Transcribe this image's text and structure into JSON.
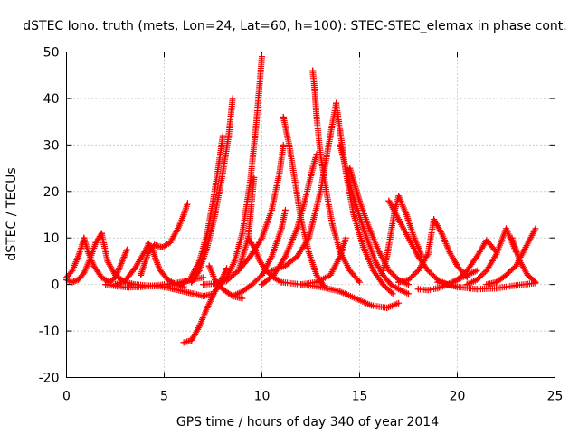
{
  "chart_data": {
    "type": "scatter",
    "title": "dSTEC Iono. truth (mets, Lon=24, Lat=60, h=100): STEC-STEC_elemax in phase cont.",
    "xlabel": "GPS time / hours of day 340 of year 2014",
    "ylabel": "dSTEC  / TECUs",
    "xlim": [
      0,
      25
    ],
    "ylim": [
      -20,
      50
    ],
    "xticks": [
      0,
      5,
      10,
      15,
      20,
      25
    ],
    "yticks": [
      -20,
      -10,
      0,
      10,
      20,
      30,
      40,
      50
    ],
    "grid": true,
    "marker": "plus",
    "color": "#ff0000",
    "series": [
      {
        "x": [
          0.0,
          0.3,
          0.6,
          0.8,
          0.9
        ],
        "y": [
          1.5,
          3.0,
          6.0,
          8.5,
          10.0
        ]
      },
      {
        "x": [
          0.9,
          1.1,
          1.4,
          1.8,
          2.2,
          2.5,
          2.7,
          2.9,
          3.1
        ],
        "y": [
          10.0,
          7.0,
          4.0,
          1.5,
          0.5,
          1.5,
          3.5,
          5.5,
          7.5
        ]
      },
      {
        "x": [
          0.0,
          0.3,
          0.6,
          0.9,
          1.2,
          1.5,
          1.8
        ],
        "y": [
          1.0,
          0.5,
          1.0,
          2.5,
          5.5,
          9.0,
          11.0
        ]
      },
      {
        "x": [
          1.8,
          2.1,
          2.5,
          3.0,
          3.5,
          4.0,
          4.5,
          5.0
        ],
        "y": [
          11.0,
          5.0,
          2.0,
          0.5,
          0.0,
          -0.2,
          -0.3,
          -0.5
        ]
      },
      {
        "x": [
          2.0,
          2.6,
          3.2,
          3.8,
          4.4,
          5.0,
          5.6,
          6.2,
          7.0
        ],
        "y": [
          0.0,
          -0.4,
          -0.6,
          -0.5,
          -0.3,
          0.0,
          0.3,
          0.8,
          1.5
        ]
      },
      {
        "x": [
          2.5,
          3.0,
          3.5,
          4.0,
          4.2
        ],
        "y": [
          0.0,
          0.8,
          3.5,
          7.0,
          8.8
        ]
      },
      {
        "x": [
          4.2,
          4.4,
          4.6,
          4.8,
          5.2,
          5.6,
          6.0
        ],
        "y": [
          8.8,
          7.5,
          5.0,
          3.0,
          1.0,
          0.0,
          -0.5
        ]
      },
      {
        "x": [
          3.8,
          4.0,
          4.2,
          4.5,
          4.9,
          5.3,
          5.7,
          6.0,
          6.2
        ],
        "y": [
          2.0,
          4.5,
          7.0,
          8.5,
          8.0,
          9.0,
          12.0,
          15.0,
          17.5
        ]
      },
      {
        "x": [
          5.0,
          5.5,
          6.0,
          6.5,
          7.0,
          7.5
        ],
        "y": [
          -0.5,
          -1.0,
          -1.5,
          -2.0,
          -2.5,
          -2.0
        ]
      },
      {
        "x": [
          6.0,
          6.4,
          6.8,
          7.2,
          7.6,
          8.0,
          8.2
        ],
        "y": [
          -12.5,
          -12.0,
          -9.0,
          -5.0,
          -1.5,
          1.5,
          3.5
        ]
      },
      {
        "x": [
          5.8,
          6.3,
          6.8,
          7.2,
          7.5,
          7.8,
          8.0
        ],
        "y": [
          0.0,
          1.0,
          5.0,
          11.0,
          18.0,
          26.0,
          32.0
        ]
      },
      {
        "x": [
          6.4,
          6.8,
          7.2,
          7.6,
          8.0,
          8.3,
          8.5
        ],
        "y": [
          0.5,
          3.0,
          8.0,
          15.0,
          24.0,
          32.0,
          40.0
        ]
      },
      {
        "x": [
          7.3,
          7.6,
          8.0,
          8.5,
          9.0
        ],
        "y": [
          4.0,
          1.0,
          -1.0,
          -2.5,
          -3.0
        ]
      },
      {
        "x": [
          7.8,
          8.2,
          8.6,
          9.0,
          9.4,
          9.7,
          10.0
        ],
        "y": [
          -0.5,
          1.5,
          5.0,
          11.0,
          22.0,
          34.0,
          49.0
        ]
      },
      {
        "x": [
          7.0,
          7.6,
          8.2,
          8.8,
          9.3,
          9.6
        ],
        "y": [
          0.0,
          0.2,
          0.8,
          3.0,
          10.0,
          23.0
        ]
      },
      {
        "x": [
          8.5,
          9.0,
          9.5,
          10.0,
          10.5,
          11.0,
          11.2
        ],
        "y": [
          -2.5,
          -1.5,
          0.0,
          2.0,
          6.0,
          12.0,
          16.0
        ]
      },
      {
        "x": [
          9.3,
          9.6,
          9.9,
          10.2,
          10.6,
          11.0
        ],
        "y": [
          10.0,
          8.0,
          5.0,
          3.0,
          1.5,
          0.5
        ]
      },
      {
        "x": [
          8.8,
          9.4,
          10.0,
          10.5,
          10.9,
          11.1
        ],
        "y": [
          3.0,
          6.0,
          10.0,
          16.0,
          24.0,
          30.0
        ]
      },
      {
        "x": [
          11.1,
          11.4,
          11.7,
          12.0,
          12.4,
          12.8,
          13.2
        ],
        "y": [
          36.0,
          30.0,
          22.0,
          14.0,
          7.0,
          2.0,
          -0.5
        ]
      },
      {
        "x": [
          10.0,
          10.6,
          11.2,
          11.8,
          12.2,
          12.6,
          12.8
        ],
        "y": [
          0.0,
          2.0,
          6.0,
          12.0,
          18.0,
          25.0,
          28.0
        ]
      },
      {
        "x": [
          12.6,
          12.7,
          12.8,
          13.0,
          13.3,
          13.6,
          14.0,
          14.5,
          15.0
        ],
        "y": [
          46.0,
          42.0,
          36.0,
          28.0,
          20.0,
          13.0,
          7.0,
          3.0,
          0.5
        ]
      },
      {
        "x": [
          10.5,
          11.2,
          11.8,
          12.4,
          13.0,
          13.5,
          13.8
        ],
        "y": [
          3.0,
          4.0,
          6.0,
          10.0,
          20.0,
          32.0,
          39.0
        ]
      },
      {
        "x": [
          13.8,
          14.0,
          14.3,
          14.7,
          15.2,
          15.7,
          16.2,
          16.7
        ],
        "y": [
          39.0,
          33.0,
          24.0,
          15.0,
          8.0,
          3.0,
          0.0,
          -2.0
        ]
      },
      {
        "x": [
          14.0,
          14.6,
          15.2,
          15.8,
          16.2,
          16.6,
          17.0,
          17.5
        ],
        "y": [
          30.0,
          20.0,
          12.0,
          5.0,
          2.0,
          0.0,
          -1.0,
          -2.0
        ]
      },
      {
        "x": [
          14.5,
          15.0,
          15.5,
          16.0,
          16.5,
          17.0,
          17.5
        ],
        "y": [
          25.0,
          18.0,
          12.0,
          7.0,
          3.0,
          1.0,
          0.0
        ]
      },
      {
        "x": [
          12.0,
          13.0,
          14.0,
          14.8,
          15.6,
          16.4,
          17.0
        ],
        "y": [
          0.0,
          -0.5,
          -1.5,
          -3.0,
          -4.5,
          -5.0,
          -4.0
        ]
      },
      {
        "x": [
          11.0,
          12.0,
          12.8,
          13.5,
          14.0,
          14.3
        ],
        "y": [
          0.5,
          0.0,
          0.5,
          2.0,
          6.0,
          10.0
        ]
      },
      {
        "x": [
          16.2,
          16.4,
          16.6,
          16.8,
          17.0,
          17.4,
          17.8,
          18.2
        ],
        "y": [
          3.0,
          6.0,
          11.0,
          16.0,
          19.0,
          15.0,
          10.0,
          6.0
        ]
      },
      {
        "x": [
          16.5,
          17.0,
          17.5,
          18.0,
          18.5,
          19.0,
          19.5,
          20.0
        ],
        "y": [
          18.0,
          14.0,
          10.0,
          6.0,
          3.0,
          1.0,
          0.0,
          -0.5
        ]
      },
      {
        "x": [
          17.0,
          17.5,
          18.0,
          18.5,
          18.8,
          19.2,
          19.6,
          20.0,
          20.5
        ],
        "y": [
          0.5,
          1.0,
          3.0,
          6.5,
          14.0,
          11.0,
          7.0,
          4.0,
          1.5
        ]
      },
      {
        "x": [
          18.0,
          18.5,
          19.0,
          19.5,
          20.0,
          20.5,
          21.0
        ],
        "y": [
          -1.0,
          -1.2,
          -0.8,
          0.0,
          1.0,
          2.0,
          3.0
        ]
      },
      {
        "x": [
          19.5,
          20.0,
          20.5,
          21.0,
          21.5,
          22.0
        ],
        "y": [
          0.0,
          1.0,
          3.0,
          6.0,
          9.5,
          7.0
        ]
      },
      {
        "x": [
          20.5,
          21.0,
          21.5,
          22.0,
          22.5,
          23.0
        ],
        "y": [
          0.0,
          1.0,
          3.0,
          6.5,
          12.0,
          7.0
        ]
      },
      {
        "x": [
          21.5,
          22.0,
          22.5,
          23.0,
          23.5,
          24.0
        ],
        "y": [
          0.0,
          0.5,
          2.0,
          4.0,
          8.0,
          12.0
        ]
      },
      {
        "x": [
          22.8,
          23.2,
          23.6,
          24.0
        ],
        "y": [
          10.0,
          5.0,
          2.0,
          0.5
        ]
      },
      {
        "x": [
          19.0,
          20.0,
          21.0,
          22.0,
          23.0,
          24.0
        ],
        "y": [
          0.5,
          -0.5,
          -1.0,
          -0.8,
          -0.2,
          0.3
        ]
      }
    ]
  }
}
